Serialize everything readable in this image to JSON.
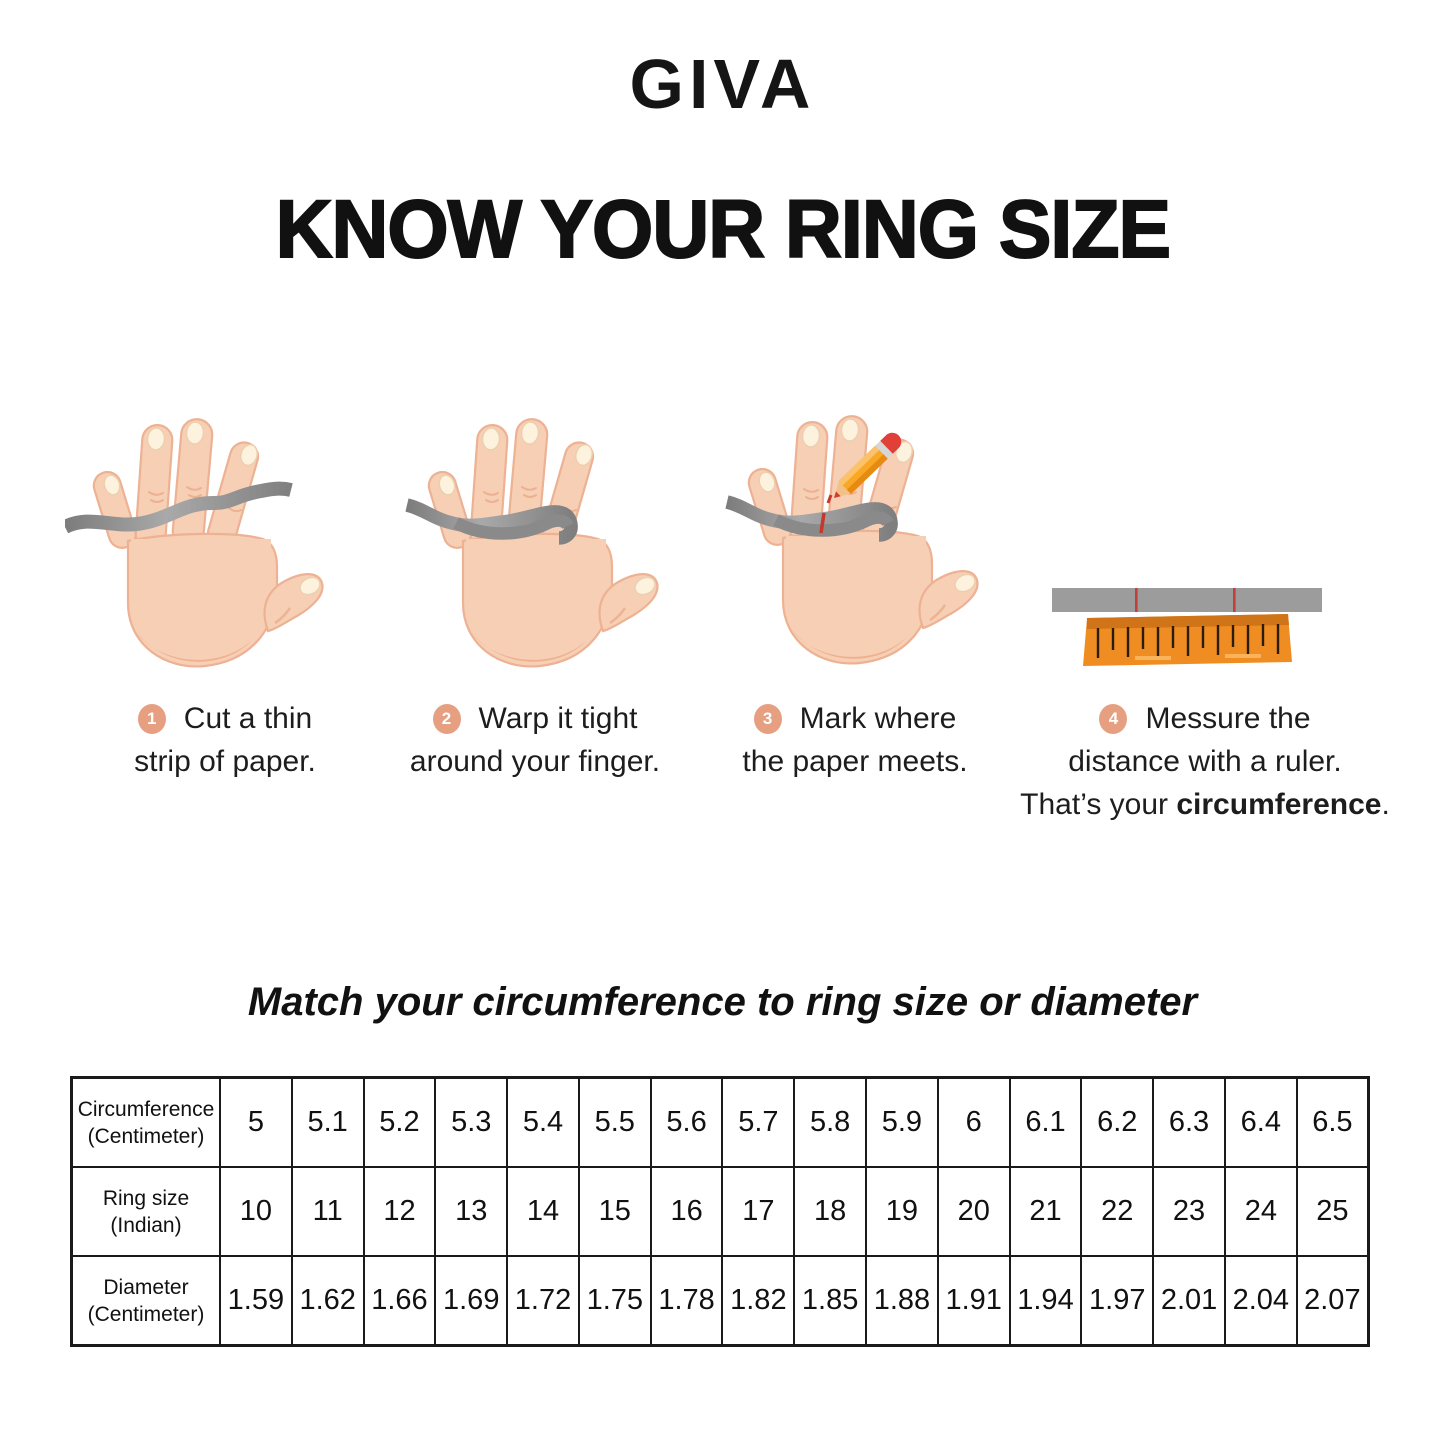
{
  "logo": {
    "text": "GIVA"
  },
  "title": "KNOW YOUR RING SIZE",
  "subtitle": "Match your circumference to ring size or diameter",
  "steps": [
    {
      "num": "1",
      "lines": [
        "Cut a thin",
        "strip of paper."
      ],
      "illustration": "hand-with-paper-strip"
    },
    {
      "num": "2",
      "lines": [
        "Warp it tight",
        "around your finger."
      ],
      "illustration": "hand-strip-wrapped-around-finger"
    },
    {
      "num": "3",
      "lines": [
        "Mark where",
        "the paper meets."
      ],
      "illustration": "hand-strip-marked-with-pencil"
    },
    {
      "num": "4",
      "lines": [
        "Messure the",
        "distance with a ruler."
      ],
      "line3_prefix": "That’s your ",
      "line3_bold": "circumference",
      "line3_suffix": ".",
      "illustration": "paper-strip-and-ruler"
    }
  ],
  "table": {
    "rows": [
      {
        "label": [
          "Circumference",
          "(Centimeter)"
        ],
        "values": [
          "5",
          "5.1",
          "5.2",
          "5.3",
          "5.4",
          "5.5",
          "5.6",
          "5.7",
          "5.8",
          "5.9",
          "6",
          "6.1",
          "6.2",
          "6.3",
          "6.4",
          "6.5"
        ]
      },
      {
        "label": [
          "Ring size",
          "(Indian)"
        ],
        "values": [
          "10",
          "11",
          "12",
          "13",
          "14",
          "15",
          "16",
          "17",
          "18",
          "19",
          "20",
          "21",
          "22",
          "23",
          "24",
          "25"
        ]
      },
      {
        "label": [
          "Diameter",
          "(Centimeter)"
        ],
        "values": [
          "1.59",
          "1.62",
          "1.66",
          "1.69",
          "1.72",
          "1.75",
          "1.78",
          "1.82",
          "1.85",
          "1.88",
          "1.91",
          "1.94",
          "1.97",
          "2.01",
          "2.04",
          "2.07"
        ]
      }
    ]
  },
  "colors": {
    "accent_peach": "#e6a081",
    "skin": "#f7cfb5",
    "strip_gray": "#949494",
    "ruler_orange": "#ef8d22",
    "mark_red": "#c6372c",
    "text": "#1d1d1d"
  }
}
